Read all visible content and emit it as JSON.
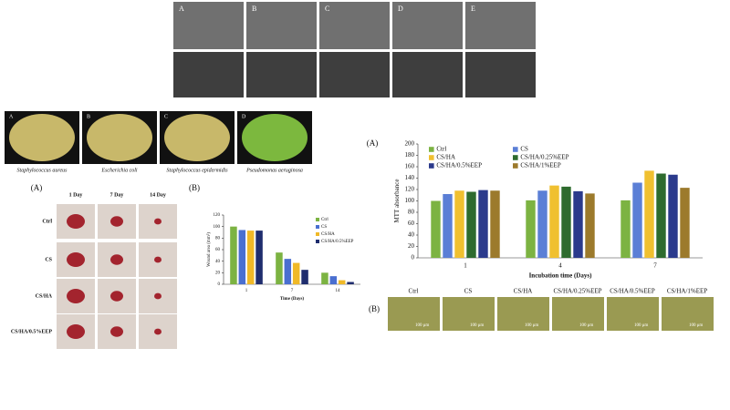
{
  "chart_data": [
    {
      "type": "bar",
      "ylabel": "Wound area (mm²)",
      "xlabel": "Time (Days)",
      "categories": [
        "1",
        "7",
        "14"
      ],
      "series": [
        {
          "name": "Ctrl",
          "color": "#7cb342",
          "values": [
            100,
            55,
            20
          ]
        },
        {
          "name": "CS",
          "color": "#4a6fd0",
          "values": [
            94,
            44,
            14
          ]
        },
        {
          "name": "CS/HA",
          "color": "#f0b928",
          "values": [
            93,
            37,
            7
          ]
        },
        {
          "name": "CS/HA/0.5%EEP",
          "color": "#1f2d6e",
          "values": [
            93,
            25,
            4
          ]
        }
      ],
      "ylim": [
        0,
        120
      ],
      "yticks": [
        0,
        20,
        40,
        60,
        80,
        100,
        120
      ]
    },
    {
      "type": "bar",
      "ylabel": "MTT absorbance",
      "xlabel": "Incubation time (Days)",
      "categories": [
        "1",
        "4",
        "7"
      ],
      "series": [
        {
          "name": "Ctrl",
          "color": "#7cb342",
          "values": [
            100,
            101,
            101
          ]
        },
        {
          "name": "CS",
          "color": "#5b7fd6",
          "values": [
            112,
            118,
            132
          ]
        },
        {
          "name": "CS/HA",
          "color": "#f0c030",
          "values": [
            118,
            127,
            153
          ]
        },
        {
          "name": "CS/HA/0.25%EEP",
          "color": "#2e6b2e",
          "values": [
            116,
            125,
            148
          ]
        },
        {
          "name": "CS/HA/0.5%EEP",
          "color": "#2b3a8c",
          "values": [
            119,
            117,
            146
          ]
        },
        {
          "name": "CS/HA/1%EEP",
          "color": "#9c7a2c",
          "values": [
            118,
            113,
            123
          ]
        }
      ],
      "ylim": [
        0,
        200
      ],
      "yticks": [
        0,
        20,
        40,
        60,
        80,
        100,
        120,
        140,
        160,
        180,
        200
      ]
    }
  ],
  "sem": {
    "labels": [
      "A",
      "B",
      "C",
      "D",
      "E"
    ]
  },
  "petri": {
    "labels": [
      "A",
      "B",
      "C",
      "D"
    ],
    "captions": [
      "Staphylococcus aureus",
      "Escherichia coli",
      "Staphylococcus epidermidis",
      "Pseudomonas aeruginosa"
    ]
  },
  "wound": {
    "panel_a": "(A)",
    "panel_b": "(B)",
    "days": [
      "1 Day",
      "7 Day",
      "14 Day"
    ],
    "rows": [
      "Ctrl",
      "CS",
      "CS/HA",
      "CS/HA/0.5%EEP"
    ]
  },
  "mtt": {
    "panel_a": "(A)",
    "panel_b": "(B)"
  },
  "cells": {
    "headers": [
      "Ctrl",
      "CS",
      "CS/HA",
      "CS/HA/0.25%EEP",
      "CS/HA/0.5%EEP",
      "CS/HA/1%EEP"
    ],
    "scale": "100 μm"
  }
}
